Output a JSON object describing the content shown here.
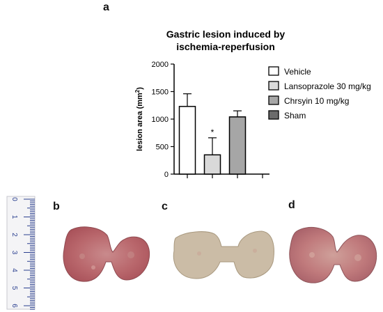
{
  "panels": {
    "a": "a",
    "b": "b",
    "c": "c",
    "d": "d"
  },
  "chart_data": {
    "type": "bar",
    "title_line1": "Gastric lesion induced by",
    "title_line2": "ischemia-reperfusion",
    "ylabel_base": "lesion area (mm",
    "ylabel_sup": "2",
    "ylabel_end": ")",
    "ylim": [
      0,
      2000
    ],
    "yticks": [
      "0",
      "500",
      "1000",
      "1500",
      "2000"
    ],
    "categories": [
      "Vehicle",
      "Lansoprazole 30 mg/kg",
      "Chrsyin 10 mg/kg",
      "Sham"
    ],
    "values": [
      1230,
      350,
      1040,
      0
    ],
    "errors": [
      230,
      310,
      110,
      0
    ],
    "fills": [
      "#ffffff",
      "#d9d9d9",
      "#a6a6a6",
      "#6b6b6b"
    ],
    "significance": [
      "",
      "*",
      "",
      ""
    ],
    "legend_position": "right"
  },
  "ruler": {
    "numbers": [
      "0",
      "1",
      "2",
      "3",
      "4",
      "5",
      "6"
    ],
    "color": "#2a3f8f"
  },
  "photos": {
    "tissue_color": "#b8666a",
    "pale_tissue_color": "#c9b8a0"
  }
}
